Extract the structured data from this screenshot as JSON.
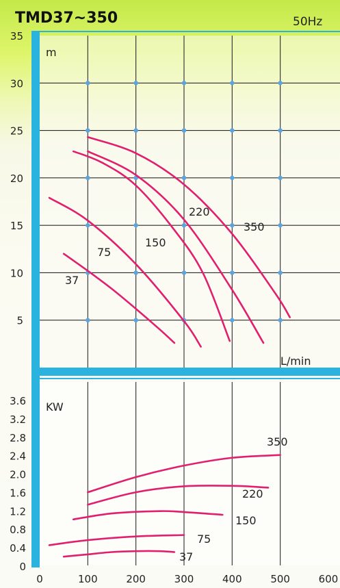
{
  "chart_data": [
    {
      "type": "line",
      "panel": "head",
      "title": "TMD37~350",
      "subtitle": "50Hz",
      "ylabel": "m",
      "xlabel": "L/min",
      "xlim": [
        0,
        600
      ],
      "ylim": [
        0,
        35
      ],
      "yticks": [
        "35",
        "30",
        "25",
        "20",
        "15",
        "10",
        "5"
      ],
      "grid": true,
      "series": [
        {
          "name": "37",
          "x": [
            50,
            100,
            150,
            200,
            250,
            280
          ],
          "y": [
            12.0,
            10.2,
            8.3,
            6.2,
            4.0,
            2.6
          ]
        },
        {
          "name": "75",
          "x": [
            20,
            100,
            200,
            300,
            335
          ],
          "y": [
            17.9,
            15.5,
            10.9,
            4.9,
            2.2
          ]
        },
        {
          "name": "150",
          "x": [
            70,
            130,
            200,
            280,
            340,
            395
          ],
          "y": [
            22.8,
            21.6,
            19.2,
            14.5,
            9.9,
            2.8
          ]
        },
        {
          "name": "220",
          "x": [
            100,
            200,
            300,
            400,
            465
          ],
          "y": [
            22.8,
            20.3,
            15.6,
            8.2,
            2.6
          ]
        },
        {
          "name": "350",
          "x": [
            100,
            200,
            300,
            400,
            490,
            520
          ],
          "y": [
            24.3,
            22.6,
            19.3,
            14.1,
            7.8,
            5.3
          ]
        }
      ]
    },
    {
      "type": "line",
      "panel": "power",
      "ylabel": "KW",
      "xticks": [
        "0",
        "100",
        "200",
        "300",
        "400",
        "500",
        "600"
      ],
      "yticks": [
        "0",
        "0.4",
        "0.8",
        "1.2",
        "1.6",
        "2.0",
        "2.4",
        "2.8",
        "3.2",
        "3.6"
      ],
      "xlim": [
        0,
        600
      ],
      "ylim": [
        0,
        3.8
      ],
      "grid": true,
      "series": [
        {
          "name": "37",
          "x": [
            50,
            100,
            150,
            200,
            250,
            280
          ],
          "y": [
            0.22,
            0.27,
            0.32,
            0.34,
            0.34,
            0.32
          ]
        },
        {
          "name": "75",
          "x": [
            20,
            100,
            200,
            300
          ],
          "y": [
            0.47,
            0.58,
            0.66,
            0.69
          ]
        },
        {
          "name": "150",
          "x": [
            70,
            150,
            250,
            300,
            380
          ],
          "y": [
            1.03,
            1.16,
            1.21,
            1.19,
            1.13
          ]
        },
        {
          "name": "220",
          "x": [
            100,
            200,
            300,
            400,
            475
          ],
          "y": [
            1.35,
            1.62,
            1.75,
            1.76,
            1.72
          ]
        },
        {
          "name": "350",
          "x": [
            100,
            200,
            300,
            400,
            500
          ],
          "y": [
            1.62,
            1.95,
            2.2,
            2.37,
            2.43
          ]
        }
      ]
    }
  ],
  "colors": {
    "curve": "#e0206e",
    "axis_frame": "#2bb3e0",
    "grid": "#2a2a2a",
    "grid_dots": "#5aa4e0",
    "background_top": "#c4e94a"
  }
}
